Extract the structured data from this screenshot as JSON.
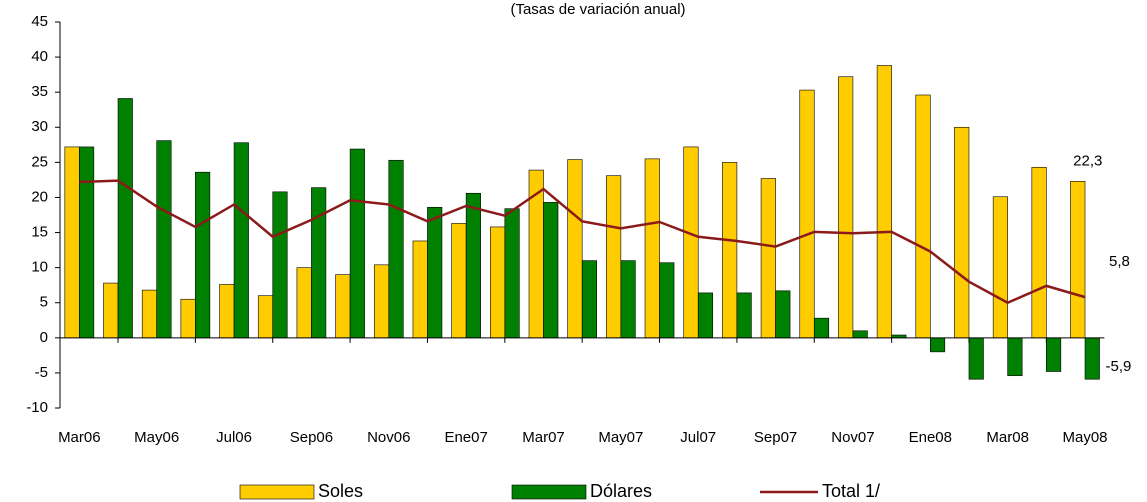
{
  "chart_data": {
    "type": "bar_line",
    "subtitle": "(Tasas de variación anual)",
    "categories": [
      "Mar06",
      null,
      "May06",
      null,
      "Jul06",
      null,
      "Sep06",
      null,
      "Nov06",
      null,
      "Ene07",
      null,
      "Mar07",
      null,
      "May07",
      null,
      "Jul07",
      null,
      "Sep07",
      null,
      "Nov07",
      null,
      "Ene08",
      null,
      "Mar08",
      null,
      "May08"
    ],
    "series": [
      {
        "name": "Soles",
        "type": "bar",
        "color": "#FFCC00",
        "values": [
          27.2,
          7.8,
          6.8,
          5.5,
          7.6,
          6.0,
          10.0,
          9.0,
          10.4,
          13.8,
          16.3,
          15.8,
          23.9,
          25.4,
          23.1,
          25.5,
          27.2,
          25.0,
          22.7,
          35.3,
          37.2,
          38.8,
          34.6,
          30.0,
          20.1,
          24.3,
          22.3
        ],
        "value_labels": [
          null,
          null,
          null,
          null,
          null,
          null,
          null,
          null,
          null,
          null,
          null,
          null,
          null,
          null,
          null,
          null,
          null,
          null,
          null,
          null,
          null,
          null,
          null,
          null,
          null,
          null,
          "22,3"
        ]
      },
      {
        "name": "Dólares",
        "type": "bar",
        "color": "#008000",
        "values": [
          27.2,
          34.1,
          28.1,
          23.6,
          27.8,
          20.8,
          21.4,
          26.9,
          25.3,
          18.6,
          20.6,
          18.4,
          19.3,
          11.0,
          11.0,
          10.7,
          6.4,
          6.4,
          6.7,
          2.8,
          1.0,
          0.4,
          -2.0,
          -5.9,
          -5.4,
          -4.8,
          -5.9
        ],
        "value_labels": [
          null,
          null,
          null,
          null,
          null,
          null,
          null,
          null,
          null,
          null,
          null,
          null,
          null,
          null,
          null,
          null,
          null,
          null,
          null,
          null,
          null,
          null,
          null,
          null,
          null,
          null,
          "-5,9"
        ]
      },
      {
        "name": "Total 1/",
        "type": "line",
        "color": "#8B1A1A",
        "values": [
          22.2,
          22.4,
          18.7,
          15.8,
          19.0,
          14.4,
          16.8,
          19.6,
          19.0,
          16.6,
          18.8,
          17.4,
          21.2,
          16.6,
          15.6,
          16.5,
          14.4,
          13.8,
          13.0,
          15.1,
          14.9,
          15.1,
          12.3,
          8.0,
          5.0,
          7.4,
          5.8
        ],
        "value_labels": [
          null,
          null,
          null,
          null,
          null,
          null,
          null,
          null,
          null,
          null,
          null,
          null,
          null,
          null,
          null,
          null,
          null,
          null,
          null,
          null,
          null,
          null,
          null,
          null,
          null,
          null,
          "5,8"
        ]
      }
    ],
    "ylim": [
      -10,
      45
    ],
    "yticks": [
      -10,
      -5,
      0,
      5,
      10,
      15,
      20,
      25,
      30,
      35,
      40,
      45
    ],
    "grid": false
  }
}
